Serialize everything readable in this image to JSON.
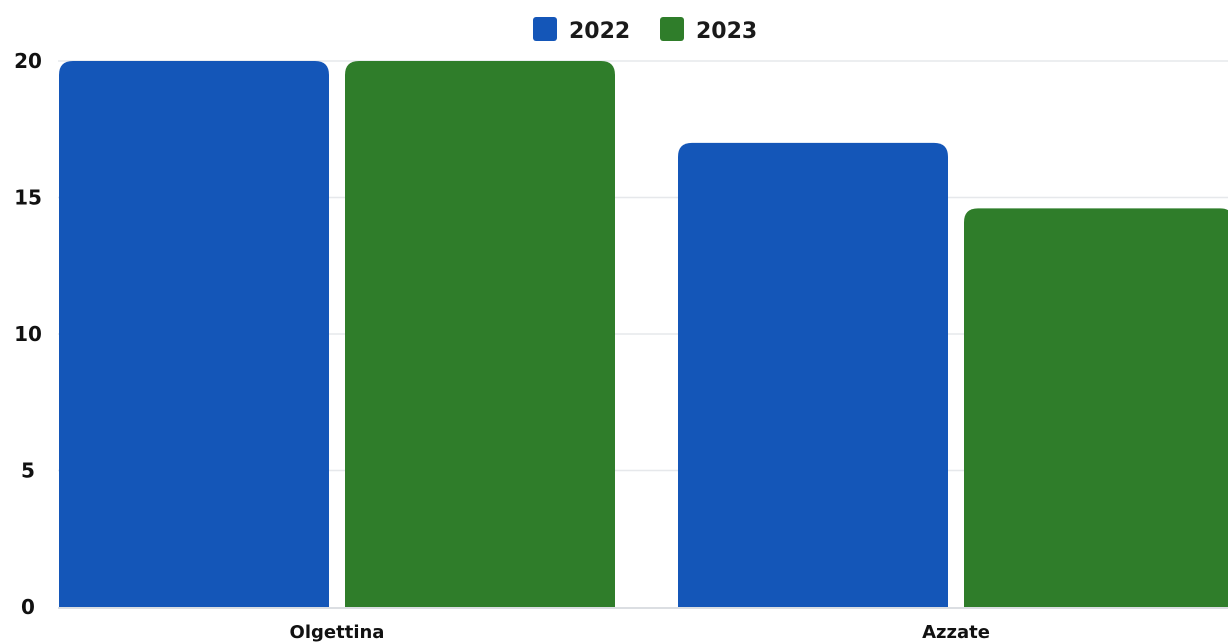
{
  "chart_data": {
    "type": "bar",
    "categories": [
      "Olgettina",
      "Azzate"
    ],
    "series": [
      {
        "name": "2022",
        "values": [
          20,
          17
        ],
        "color": "#1456b8"
      },
      {
        "name": "2023",
        "values": [
          20,
          14.6
        ],
        "color": "#2f7d2a"
      }
    ],
    "yticks": [
      "0",
      "5",
      "10",
      "15",
      "20"
    ],
    "ylim": [
      0,
      20
    ],
    "grid": true,
    "legend_position": "top-center"
  }
}
